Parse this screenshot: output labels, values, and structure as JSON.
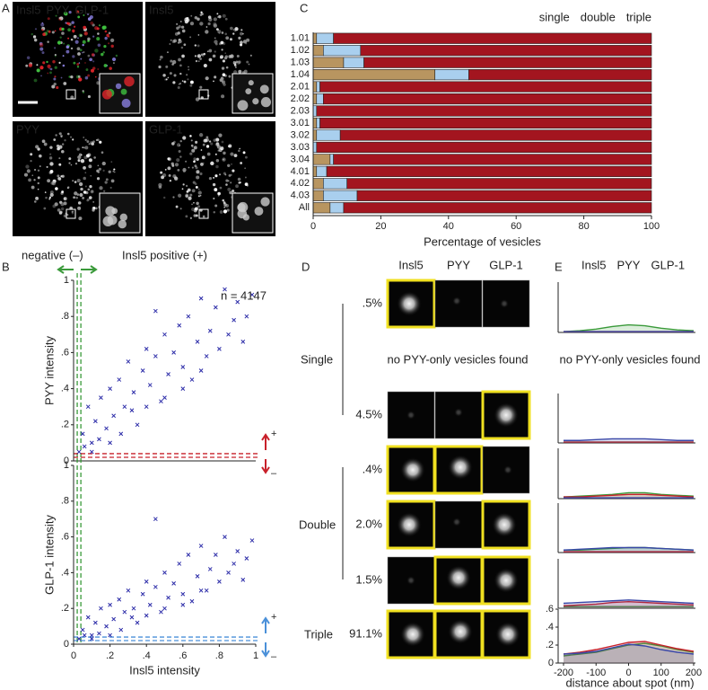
{
  "panel_letters": [
    "A",
    "B",
    "C",
    "D",
    "E"
  ],
  "panel_a": {
    "merge_labels": [
      "Insl5",
      "PYY",
      "GLP-1"
    ],
    "merge_colors": [
      "#3fbf3f",
      "#e0242a",
      "#4a7fe0"
    ],
    "labels": [
      "Insl5",
      "PYY",
      "GLP-1"
    ]
  },
  "panel_b": {
    "negative_label": "negative (–)",
    "positive_label": "Insl5 positive (+)",
    "plus": "+",
    "minus": "–",
    "annotation": "n = 4147"
  },
  "panel_d": {
    "headers": [
      "Insl5",
      "PYY",
      "GLP-1"
    ],
    "groups": [
      "Single",
      "Double",
      "Triple"
    ],
    "note": "no PYY-only vesicles found",
    "rows": [
      {
        "percent": ".5%",
        "highlighted": [
          true,
          false,
          false
        ]
      },
      {
        "percent": "4.5%",
        "highlighted": [
          false,
          false,
          true
        ]
      },
      {
        "percent": ".4%",
        "highlighted": [
          true,
          true,
          false
        ]
      },
      {
        "percent": "2.0%",
        "highlighted": [
          true,
          false,
          true
        ]
      },
      {
        "percent": "1.5%",
        "highlighted": [
          false,
          true,
          true
        ]
      },
      {
        "percent": "91.1%",
        "highlighted": [
          true,
          true,
          true
        ]
      }
    ]
  },
  "panel_e": {
    "note": "no PYY-only vesicles found",
    "xlabel": "distance about spot (nm)"
  },
  "chart_data": [
    {
      "type": "bar",
      "orientation": "horizontal",
      "stacked": true,
      "xlabel": "Percentage of vesicles",
      "categories": [
        "1.01",
        "1.02",
        "1.03",
        "1.04",
        "2.01",
        "2.02",
        "2.03",
        "3.01",
        "3.02",
        "3.03",
        "3.04",
        "4.01",
        "4.02",
        "4.03",
        "All"
      ],
      "series": [
        {
          "name": "single",
          "color": "#b89560",
          "values": [
            1,
            3,
            9,
            36,
            1,
            1,
            0,
            1,
            1,
            0,
            5,
            1,
            3,
            3,
            5
          ]
        },
        {
          "name": "double",
          "color": "#a9cfee",
          "values": [
            5,
            11,
            6,
            10,
            1,
            2,
            1,
            1,
            7,
            1,
            1,
            3,
            7,
            10,
            4
          ]
        },
        {
          "name": "triple",
          "color": "#a3151f",
          "values": [
            94,
            86,
            85,
            54,
            98,
            97,
            99,
            98,
            92,
            99,
            94,
            96,
            90,
            87,
            91
          ]
        }
      ],
      "xlim": [
        0,
        100
      ],
      "xticks": [
        0,
        20,
        40,
        60,
        80,
        100
      ],
      "legend": "top-right"
    },
    {
      "type": "scatter",
      "ylabel": "PYY intensity",
      "color": "#2b2ba8",
      "threshold_x_color": "#3a9a3a",
      "threshold_y_color": "#c8202a",
      "x_thresholds": [
        0.02,
        0.04
      ],
      "y_thresholds": [
        0.02,
        0.04
      ],
      "x": [
        0.05,
        0.08,
        0.1,
        0.12,
        0.15,
        0.18,
        0.2,
        0.22,
        0.25,
        0.28,
        0.3,
        0.33,
        0.35,
        0.38,
        0.4,
        0.42,
        0.45,
        0.48,
        0.5,
        0.52,
        0.55,
        0.58,
        0.6,
        0.63,
        0.65,
        0.68,
        0.7,
        0.73,
        0.75,
        0.78,
        0.8,
        0.83,
        0.85,
        0.88,
        0.9,
        0.93,
        0.95,
        0.98,
        0.03,
        0.06,
        0.1,
        0.14,
        0.2,
        0.26,
        0.32,
        0.4,
        0.5,
        0.6,
        0.7,
        0.45
      ],
      "values": [
        0.15,
        0.3,
        0.1,
        0.22,
        0.35,
        0.18,
        0.4,
        0.25,
        0.45,
        0.3,
        0.55,
        0.38,
        0.2,
        0.5,
        0.62,
        0.42,
        0.58,
        0.33,
        0.7,
        0.48,
        0.6,
        0.75,
        0.52,
        0.8,
        0.45,
        0.66,
        0.9,
        0.58,
        0.72,
        0.85,
        0.62,
        0.95,
        0.7,
        0.78,
        0.88,
        0.66,
        0.8,
        0.92,
        0.05,
        0.08,
        0.05,
        0.12,
        0.1,
        0.15,
        0.28,
        0.3,
        0.35,
        0.4,
        0.5,
        0.83
      ],
      "xlim": [
        0,
        1
      ],
      "ylim": [
        0,
        1
      ],
      "yticks": [
        0,
        {
          "value": 0.2,
          "label": ".2"
        },
        {
          "value": 0.4,
          "label": ".4"
        },
        {
          "value": 0.6,
          "label": ".6"
        },
        {
          "value": 0.8,
          "label": ".8"
        },
        1
      ]
    },
    {
      "type": "scatter",
      "ylabel": "GLP-1 intensity",
      "xlabel": "Insl5 intensity",
      "color": "#2b2ba8",
      "threshold_x_color": "#3a9a3a",
      "threshold_y_color": "#4a90d9",
      "x_thresholds": [
        0.02,
        0.04
      ],
      "y_thresholds": [
        0.02,
        0.04
      ],
      "x": [
        0.05,
        0.08,
        0.1,
        0.12,
        0.15,
        0.18,
        0.2,
        0.22,
        0.25,
        0.28,
        0.3,
        0.33,
        0.35,
        0.38,
        0.4,
        0.42,
        0.45,
        0.48,
        0.5,
        0.52,
        0.55,
        0.58,
        0.6,
        0.63,
        0.65,
        0.68,
        0.7,
        0.73,
        0.75,
        0.78,
        0.8,
        0.83,
        0.85,
        0.88,
        0.9,
        0.93,
        0.95,
        0.98,
        0.03,
        0.06,
        0.1,
        0.14,
        0.2,
        0.26,
        0.32,
        0.4,
        0.5,
        0.6,
        0.7,
        0.45
      ],
      "values": [
        0.08,
        0.15,
        0.05,
        0.12,
        0.2,
        0.1,
        0.22,
        0.14,
        0.25,
        0.18,
        0.3,
        0.2,
        0.12,
        0.28,
        0.35,
        0.22,
        0.32,
        0.18,
        0.4,
        0.26,
        0.34,
        0.45,
        0.28,
        0.5,
        0.24,
        0.38,
        0.55,
        0.3,
        0.42,
        0.5,
        0.35,
        0.6,
        0.4,
        0.45,
        0.52,
        0.36,
        0.48,
        0.58,
        0.03,
        0.05,
        0.03,
        0.06,
        0.05,
        0.08,
        0.15,
        0.16,
        0.2,
        0.22,
        0.3,
        0.7
      ],
      "xlim": [
        0,
        1
      ],
      "ylim": [
        0,
        1
      ],
      "xticks": [
        0,
        {
          "value": 0.2,
          "label": ".2"
        },
        {
          "value": 0.4,
          "label": ".4"
        },
        {
          "value": 0.6,
          "label": ".6"
        },
        {
          "value": 0.8,
          "label": ".8"
        },
        1
      ],
      "yticks": [
        0,
        {
          "value": 0.2,
          "label": ".2"
        },
        {
          "value": 0.4,
          "label": ".4"
        },
        {
          "value": 0.6,
          "label": ".6"
        },
        {
          "value": 0.8,
          "label": ".8"
        },
        1
      ]
    },
    {
      "type": "line",
      "x": [
        -200,
        -150,
        -100,
        -50,
        0,
        50,
        100,
        150,
        200
      ],
      "xlim": [
        -200,
        200
      ],
      "ylim": [
        0,
        0.6
      ],
      "series": [
        {
          "name": "Insl5",
          "color": "#3a9a3a",
          "values": [
            0.01,
            0.02,
            0.04,
            0.07,
            0.09,
            0.08,
            0.05,
            0.03,
            0.02
          ]
        },
        {
          "name": "PYY",
          "color": "#c8202a",
          "values": [
            0.01,
            0.01,
            0.01,
            0.01,
            0.01,
            0.01,
            0.01,
            0.01,
            0.01
          ]
        },
        {
          "name": "GLP-1",
          "color": "#3a48a8",
          "values": [
            0.01,
            0.01,
            0.01,
            0.01,
            0.01,
            0.01,
            0.01,
            0.01,
            0.01
          ]
        }
      ]
    },
    {
      "type": "line",
      "x": [
        -200,
        -150,
        -100,
        -50,
        0,
        50,
        100,
        150,
        200
      ],
      "xlim": [
        -200,
        200
      ],
      "ylim": [
        0,
        0.6
      ],
      "series": [
        {
          "name": "Insl5",
          "color": "#3a9a3a",
          "values": [
            0.01,
            0.01,
            0.01,
            0.01,
            0.01,
            0.01,
            0.01,
            0.01,
            0.01
          ]
        },
        {
          "name": "PYY",
          "color": "#c8202a",
          "values": [
            0.01,
            0.01,
            0.01,
            0.01,
            0.01,
            0.01,
            0.01,
            0.01,
            0.01
          ]
        },
        {
          "name": "GLP-1",
          "color": "#3a48a8",
          "values": [
            0.03,
            0.03,
            0.04,
            0.05,
            0.05,
            0.05,
            0.04,
            0.03,
            0.03
          ]
        }
      ]
    },
    {
      "type": "line",
      "x": [
        -200,
        -150,
        -100,
        -50,
        0,
        50,
        100,
        150,
        200
      ],
      "xlim": [
        -200,
        200
      ],
      "ylim": [
        0,
        0.6
      ],
      "series": [
        {
          "name": "Insl5",
          "color": "#3a9a3a",
          "values": [
            0.02,
            0.03,
            0.04,
            0.05,
            0.07,
            0.07,
            0.05,
            0.04,
            0.03
          ]
        },
        {
          "name": "PYY",
          "color": "#c8202a",
          "values": [
            0.02,
            0.02,
            0.03,
            0.04,
            0.05,
            0.05,
            0.04,
            0.03,
            0.02
          ]
        },
        {
          "name": "GLP-1",
          "color": "#3a48a8",
          "values": [
            0.01,
            0.01,
            0.01,
            0.01,
            0.01,
            0.01,
            0.01,
            0.01,
            0.01
          ]
        }
      ]
    },
    {
      "type": "line",
      "x": [
        -200,
        -150,
        -100,
        -50,
        0,
        50,
        100,
        150,
        200
      ],
      "xlim": [
        -200,
        200
      ],
      "ylim": [
        0,
        0.6
      ],
      "series": [
        {
          "name": "Insl5",
          "color": "#3a9a3a",
          "values": [
            0.03,
            0.03,
            0.04,
            0.05,
            0.06,
            0.06,
            0.05,
            0.04,
            0.03
          ]
        },
        {
          "name": "PYY",
          "color": "#c8202a",
          "values": [
            0.01,
            0.01,
            0.01,
            0.01,
            0.01,
            0.01,
            0.01,
            0.01,
            0.01
          ]
        },
        {
          "name": "GLP-1",
          "color": "#3a48a8",
          "values": [
            0.03,
            0.04,
            0.05,
            0.06,
            0.06,
            0.06,
            0.05,
            0.04,
            0.03
          ]
        }
      ]
    },
    {
      "type": "line",
      "x": [
        -200,
        -150,
        -100,
        -50,
        0,
        50,
        100,
        150,
        200
      ],
      "xlim": [
        -200,
        200
      ],
      "ylim": [
        0,
        0.6
      ],
      "series": [
        {
          "name": "Insl5",
          "color": "#3a9a3a",
          "values": [
            0.02,
            0.02,
            0.02,
            0.02,
            0.02,
            0.02,
            0.02,
            0.02,
            0.02
          ]
        },
        {
          "name": "PYY",
          "color": "#c8202a",
          "values": [
            0.03,
            0.04,
            0.05,
            0.07,
            0.08,
            0.07,
            0.06,
            0.05,
            0.04
          ]
        },
        {
          "name": "GLP-1",
          "color": "#3a48a8",
          "values": [
            0.06,
            0.07,
            0.08,
            0.09,
            0.1,
            0.09,
            0.08,
            0.07,
            0.06
          ]
        }
      ]
    },
    {
      "type": "line",
      "x": [
        -200,
        -150,
        -100,
        -50,
        0,
        50,
        100,
        150,
        200
      ],
      "xlim": [
        -200,
        200
      ],
      "ylim": [
        0,
        0.6
      ],
      "xticks": [
        -200,
        -100,
        0,
        100,
        200
      ],
      "yticks": [
        0,
        {
          "value": 0.2,
          "label": ".2"
        },
        {
          "value": 0.4,
          "label": ".4"
        },
        {
          "value": 0.6,
          "label": ".6"
        }
      ],
      "series": [
        {
          "name": "Insl5",
          "color": "#3a9a3a",
          "values": [
            0.08,
            0.1,
            0.12,
            0.16,
            0.2,
            0.22,
            0.19,
            0.15,
            0.12
          ]
        },
        {
          "name": "PYY",
          "color": "#c8202a",
          "values": [
            0.1,
            0.12,
            0.15,
            0.19,
            0.23,
            0.24,
            0.2,
            0.16,
            0.13
          ]
        },
        {
          "name": "GLP-1",
          "color": "#3a48a8",
          "values": [
            0.1,
            0.11,
            0.13,
            0.17,
            0.21,
            0.19,
            0.15,
            0.12,
            0.1
          ]
        }
      ]
    }
  ]
}
